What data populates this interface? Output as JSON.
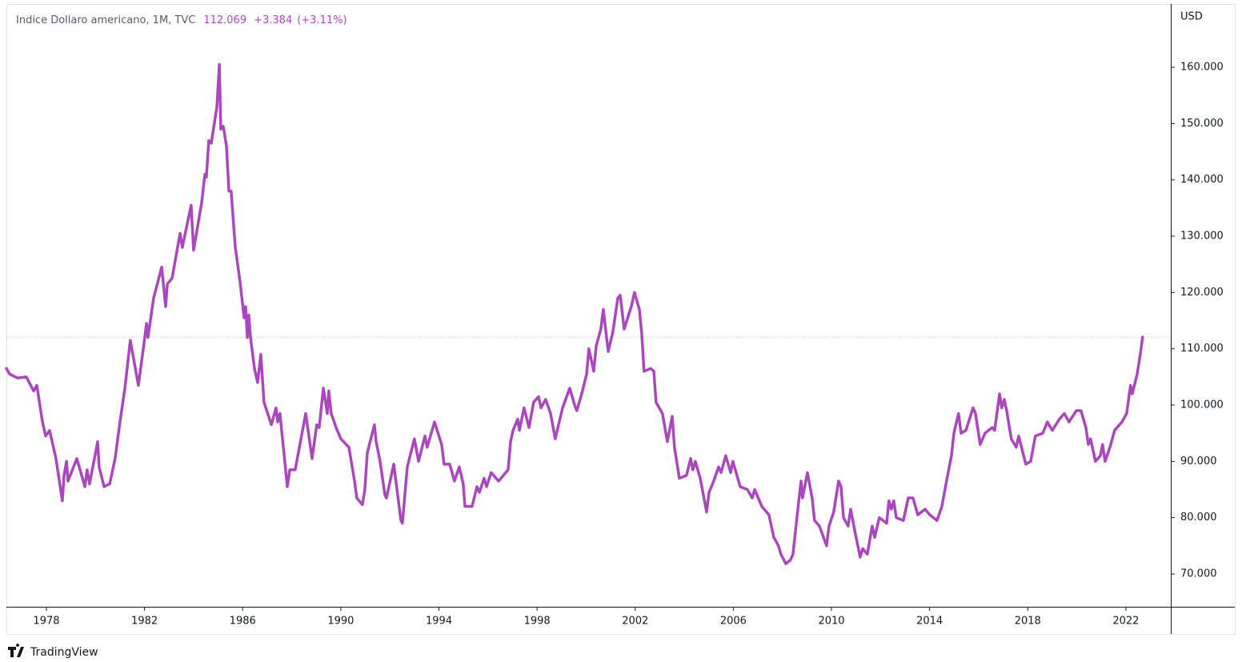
{
  "chart_data": {
    "type": "line",
    "title": "Indice Dollaro americano, 1M, TVC",
    "last": "112.069",
    "change": "+3.384",
    "change_pct": "(+3.11%)",
    "y_axis_label": "USD",
    "brand": "TradingView",
    "color": "#ab47bc",
    "xlim": [
      1976.37,
      2023.83
    ],
    "xticks": [
      1978,
      1982,
      1986,
      1990,
      1994,
      1998,
      2002,
      2006,
      2010,
      2014,
      2018,
      2022
    ],
    "ylim": [
      64.17,
      171.24
    ],
    "yticks": [
      {
        "value": 70,
        "label": "70.000"
      },
      {
        "value": 80,
        "label": "80.000"
      },
      {
        "value": 90,
        "label": "90.000"
      },
      {
        "value": 100,
        "label": "100.000"
      },
      {
        "value": 110,
        "label": "110.000"
      },
      {
        "value": 120,
        "label": "120.000"
      },
      {
        "value": 130,
        "label": "130.000"
      },
      {
        "value": 140,
        "label": "140.000"
      },
      {
        "value": 150,
        "label": "150.000"
      },
      {
        "value": 160,
        "label": "160.000"
      }
    ],
    "x": [
      1976.37,
      1976.5,
      1976.83,
      1977.18,
      1977.48,
      1977.61,
      1977.84,
      1977.97,
      1978.13,
      1978.39,
      1978.65,
      1978.72,
      1978.82,
      1978.88,
      1979.24,
      1979.57,
      1979.66,
      1979.76,
      1980.09,
      1980.15,
      1980.35,
      1980.58,
      1980.8,
      1981.0,
      1981.2,
      1981.42,
      1981.75,
      1981.98,
      1982.08,
      1982.14,
      1982.37,
      1982.7,
      1982.86,
      1982.93,
      1983.12,
      1983.45,
      1983.54,
      1983.9,
      1984.0,
      1984.33,
      1984.46,
      1984.52,
      1984.62,
      1984.72,
      1984.95,
      1985.05,
      1985.11,
      1985.21,
      1985.34,
      1985.44,
      1985.53,
      1985.7,
      1985.89,
      1986.06,
      1986.12,
      1986.19,
      1986.25,
      1986.32,
      1986.48,
      1986.61,
      1986.74,
      1986.87,
      1987.17,
      1987.36,
      1987.43,
      1987.52,
      1987.82,
      1987.92,
      1988.14,
      1988.57,
      1988.83,
      1989.02,
      1989.12,
      1989.29,
      1989.45,
      1989.51,
      1989.61,
      1989.81,
      1990.0,
      1990.33,
      1990.56,
      1990.65,
      1990.88,
      1990.98,
      1991.08,
      1991.37,
      1991.44,
      1991.6,
      1991.8,
      1991.86,
      1992.16,
      1992.45,
      1992.51,
      1992.71,
      1993.0,
      1993.17,
      1993.43,
      1993.52,
      1993.82,
      1994.11,
      1994.21,
      1994.44,
      1994.63,
      1994.83,
      1994.99,
      1995.06,
      1995.35,
      1995.55,
      1995.65,
      1995.84,
      1995.94,
      1996.13,
      1996.43,
      1996.82,
      1996.92,
      1997.02,
      1997.21,
      1997.28,
      1997.47,
      1997.67,
      1997.86,
      1998.06,
      1998.16,
      1998.35,
      1998.55,
      1998.74,
      1999.04,
      1999.33,
      1999.53,
      1999.62,
      1999.82,
      2000.02,
      2000.11,
      2000.31,
      2000.41,
      2000.6,
      2000.7,
      2000.9,
      2001.09,
      2001.29,
      2001.39,
      2001.55,
      2001.84,
      2001.97,
      2002.17,
      2002.27,
      2002.36,
      2002.63,
      2002.76,
      2002.85,
      2003.11,
      2003.31,
      2003.51,
      2003.6,
      2003.8,
      2004.09,
      2004.26,
      2004.35,
      2004.45,
      2004.65,
      2004.91,
      2005.01,
      2005.2,
      2005.4,
      2005.5,
      2005.69,
      2005.89,
      2005.98,
      2006.28,
      2006.57,
      2006.77,
      2006.87,
      2007.16,
      2007.45,
      2007.65,
      2007.84,
      2007.94,
      2008.14,
      2008.33,
      2008.43,
      2008.63,
      2008.76,
      2008.82,
      2009.02,
      2009.21,
      2009.31,
      2009.51,
      2009.8,
      2009.9,
      2010.09,
      2010.29,
      2010.39,
      2010.49,
      2010.68,
      2010.78,
      2010.98,
      2011.17,
      2011.27,
      2011.46,
      2011.66,
      2011.76,
      2011.95,
      2012.25,
      2012.34,
      2012.44,
      2012.54,
      2012.64,
      2012.93,
      2013.13,
      2013.32,
      2013.52,
      2013.81,
      2014.01,
      2014.3,
      2014.5,
      2014.69,
      2014.89,
      2014.99,
      2015.18,
      2015.28,
      2015.48,
      2015.77,
      2015.87,
      2016.06,
      2016.26,
      2016.55,
      2016.65,
      2016.85,
      2016.94,
      2017.04,
      2017.14,
      2017.33,
      2017.53,
      2017.63,
      2017.92,
      2018.12,
      2018.31,
      2018.61,
      2018.8,
      2019.0,
      2019.29,
      2019.49,
      2019.68,
      2019.98,
      2020.17,
      2020.37,
      2020.47,
      2020.56,
      2020.76,
      2020.96,
      2021.05,
      2021.15,
      2021.35,
      2021.54,
      2021.84,
      2022.03,
      2022.19,
      2022.26,
      2022.46,
      2022.62,
      2022.68
    ],
    "values": [
      106.5,
      105.5,
      104.8,
      105,
      102.5,
      103.5,
      97,
      94.5,
      95.5,
      90.5,
      83,
      87.5,
      90,
      86.5,
      90.5,
      85.5,
      88.5,
      86,
      93.5,
      89,
      85.5,
      86,
      90.5,
      97,
      103,
      111.5,
      103.5,
      111,
      114.5,
      112,
      119,
      124.5,
      117.5,
      121.5,
      122.5,
      130.5,
      128,
      135.5,
      127.5,
      136,
      141,
      140.5,
      147,
      146.5,
      153,
      160.5,
      149,
      149.5,
      146,
      138,
      138,
      128,
      122,
      115.5,
      117.5,
      112,
      116,
      112,
      106.5,
      104,
      109,
      100.5,
      96.5,
      99.5,
      97,
      98.5,
      85.5,
      88.5,
      88.5,
      98.5,
      90.5,
      96.5,
      96,
      103,
      98.5,
      102.5,
      98.5,
      96,
      94,
      92.5,
      86.5,
      83.5,
      82.3,
      85,
      91.5,
      96.5,
      93.5,
      90,
      84,
      83.5,
      89.5,
      79.5,
      79,
      89,
      94,
      90,
      94.5,
      92.5,
      97,
      93,
      89.5,
      89.5,
      86.5,
      89,
      86,
      82,
      82,
      85.5,
      84.5,
      87,
      85.5,
      88,
      86.5,
      88.5,
      93.5,
      95.5,
      97.5,
      95.5,
      99.5,
      96,
      100.5,
      101.5,
      99.5,
      101,
      98.5,
      94,
      99.5,
      103,
      100,
      99,
      102,
      105.5,
      110,
      106,
      110.5,
      113.5,
      117,
      109.5,
      113,
      119,
      119.5,
      113.5,
      117.5,
      120,
      117,
      112.5,
      106,
      106.5,
      106,
      100.5,
      98.5,
      93.5,
      98,
      92.5,
      87,
      87.5,
      90.5,
      88.5,
      90,
      87,
      81,
      84.5,
      86.5,
      89,
      88,
      91,
      88,
      90,
      85.5,
      85,
      83.5,
      85,
      82,
      80.5,
      76.5,
      75,
      73.5,
      71.8,
      72.5,
      73.5,
      81.5,
      86.5,
      83.5,
      88,
      83.5,
      79.5,
      78.5,
      75,
      78.5,
      81,
      86.5,
      85.5,
      80,
      78.5,
      81.5,
      77,
      73,
      74.5,
      73.5,
      78.5,
      76.5,
      80,
      79,
      83,
      81.5,
      83,
      80,
      79.5,
      83.5,
      83.5,
      80.5,
      81.5,
      80.5,
      79.5,
      82,
      86.5,
      91,
      95,
      98.5,
      95,
      95.5,
      99.5,
      98.5,
      93,
      95,
      96,
      95.5,
      102,
      99.5,
      101,
      99,
      94,
      92.5,
      94.5,
      89.5,
      90,
      94.5,
      95,
      97,
      95.5,
      97.5,
      98.5,
      97,
      99,
      99,
      96,
      93,
      94,
      90,
      91,
      93,
      90,
      92.5,
      95.5,
      97,
      98.5,
      103.5,
      102,
      105.5,
      110,
      112.069
    ]
  }
}
